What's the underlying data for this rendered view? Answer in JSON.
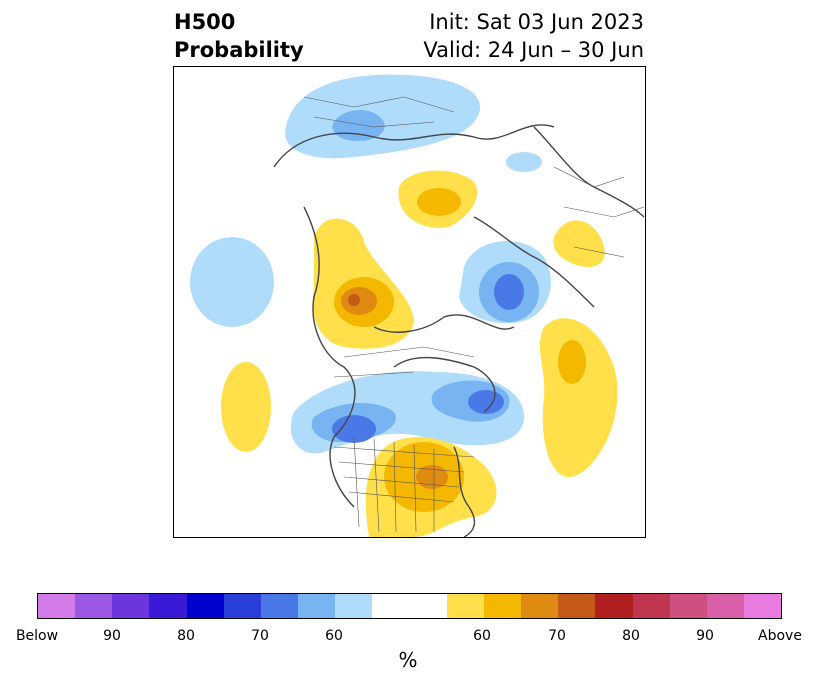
{
  "title": {
    "left_line1": "H500",
    "left_line2": "Probability",
    "right_line1": "Init: Sat 03 Jun 2023",
    "right_line2": "Valid: 24 Jun – 30 Jun"
  },
  "colorbar": {
    "unit": "%",
    "colors": [
      "#d47bea",
      "#9b59e3",
      "#6b36dc",
      "#3a1ad6",
      "#0000cc",
      "#2a3fd8",
      "#4a78e6",
      "#78b4f2",
      "#aedcfa",
      "#ffffff",
      "#ffffff",
      "#ffe04a",
      "#f4b800",
      "#df8a10",
      "#c45a18",
      "#b02020",
      "#c03650",
      "#cc5080",
      "#d960a8",
      "#e97ae0"
    ],
    "labels": [
      "Below",
      "90",
      "80",
      "70",
      "60",
      "60",
      "70",
      "80",
      "90",
      "Above"
    ]
  }
}
